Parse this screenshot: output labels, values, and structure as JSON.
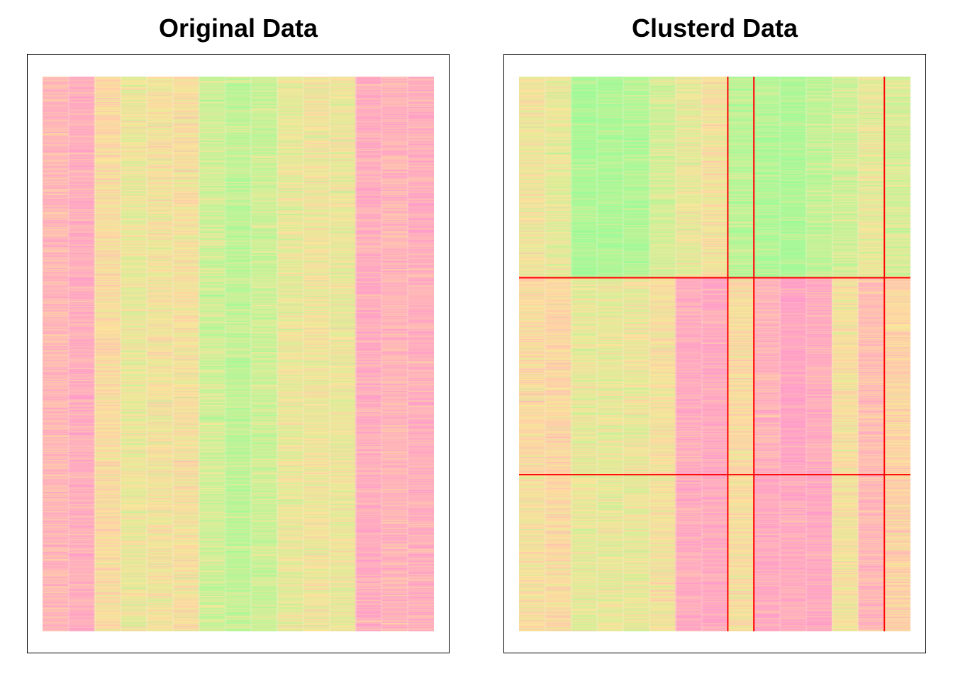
{
  "chart_data": [
    {
      "type": "heatmap",
      "title": "Original Data",
      "n_columns": 15,
      "n_rows": 2000,
      "palette": [
        "#98FB98",
        "#FFE599",
        "#FF99CC"
      ],
      "column_tone": [
        0.8,
        0.86,
        0.55,
        0.42,
        0.48,
        0.5,
        0.28,
        0.2,
        0.26,
        0.4,
        0.45,
        0.43,
        0.88,
        0.82,
        0.86
      ],
      "row_blocks": [],
      "col_blocks": []
    },
    {
      "type": "heatmap",
      "title": "Clusterd Data",
      "n_columns": 15,
      "n_rows": 2000,
      "palette": [
        "#98FB98",
        "#FFE599",
        "#FF99CC"
      ],
      "row_blocks": [
        {
          "rows": 725,
          "column_tone": [
            0.45,
            0.38,
            0.08,
            0.1,
            0.12,
            0.3,
            0.4,
            0.48,
            0.18,
            0.12,
            0.1,
            0.2,
            0.28,
            0.4,
            0.3
          ]
        },
        {
          "rows": 710,
          "column_tone": [
            0.55,
            0.58,
            0.4,
            0.4,
            0.42,
            0.5,
            0.88,
            0.9,
            0.55,
            0.82,
            0.95,
            0.88,
            0.5,
            0.75,
            0.6
          ]
        },
        {
          "rows": 565,
          "column_tone": [
            0.5,
            0.55,
            0.4,
            0.4,
            0.4,
            0.48,
            0.88,
            0.9,
            0.52,
            0.9,
            0.88,
            0.92,
            0.48,
            0.8,
            0.62
          ]
        }
      ],
      "col_blocks": [
        8,
        1,
        5,
        1
      ],
      "separator_color": "#FF0000"
    }
  ]
}
